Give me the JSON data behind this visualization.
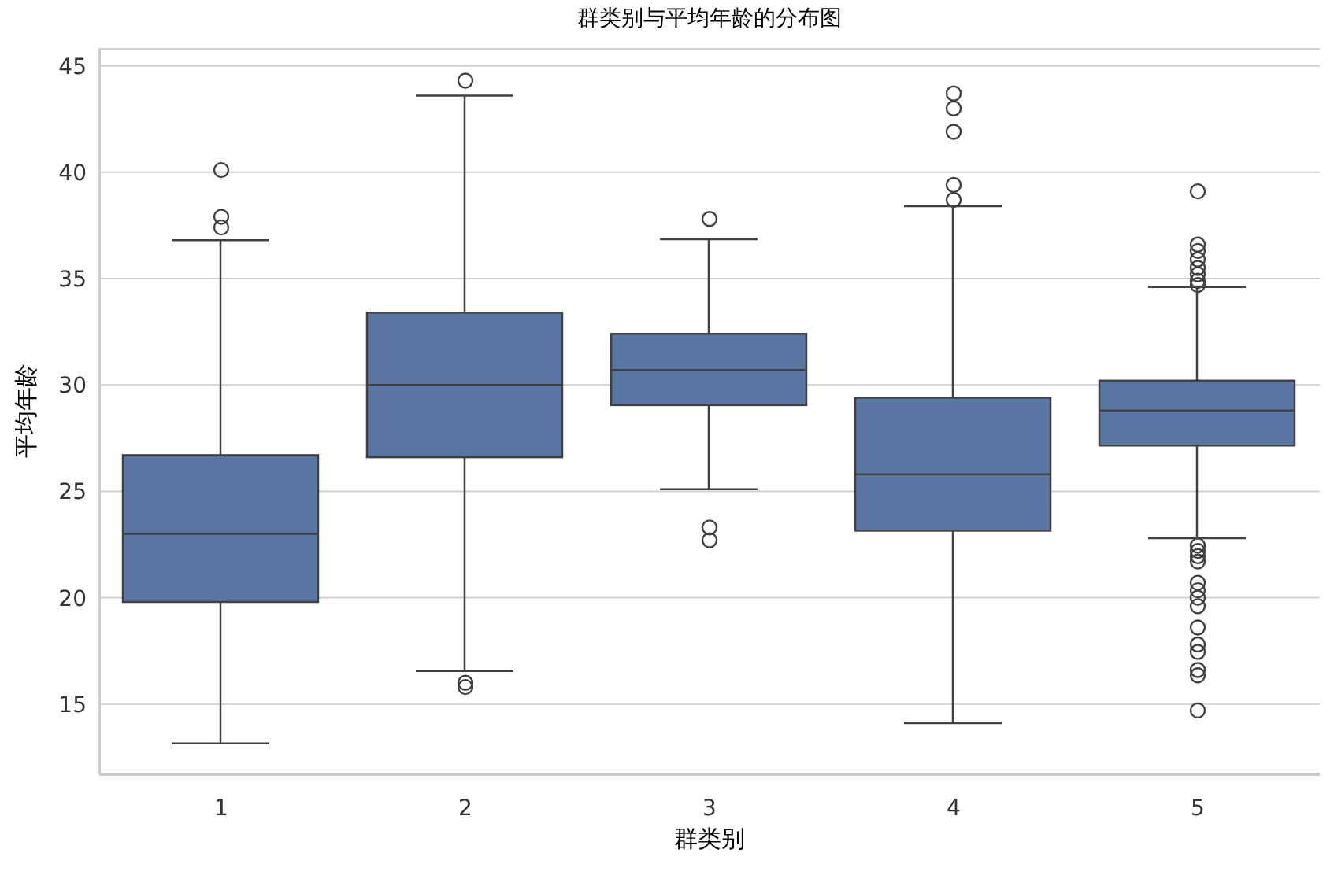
{
  "chart_data": {
    "type": "box",
    "title": "群类别与平均年龄的分布图",
    "xlabel": "群类别",
    "ylabel": "平均年龄",
    "categories": [
      "1",
      "2",
      "3",
      "4",
      "5"
    ],
    "color": "#5975a4",
    "ylim": [
      11.7,
      45.8
    ],
    "yticks": [
      15,
      20,
      25,
      30,
      35,
      40,
      45
    ],
    "grid": "y",
    "boxes": [
      {
        "low": 13.15,
        "q1": 19.8,
        "median": 23.0,
        "q3": 26.7,
        "high": 36.8,
        "outliers": [
          40.1,
          37.9,
          37.4
        ]
      },
      {
        "low": 16.55,
        "q1": 26.6,
        "median": 30.0,
        "q3": 33.4,
        "high": 43.6,
        "outliers": [
          44.3,
          16.0,
          15.8
        ]
      },
      {
        "low": 25.1,
        "q1": 29.05,
        "median": 30.7,
        "q3": 32.4,
        "high": 36.85,
        "outliers": [
          37.8,
          23.3,
          22.7
        ]
      },
      {
        "low": 14.1,
        "q1": 23.15,
        "median": 25.8,
        "q3": 29.4,
        "high": 38.4,
        "outliers": [
          43.7,
          43.0,
          41.9,
          39.4,
          38.7
        ]
      },
      {
        "low": 22.8,
        "q1": 27.15,
        "median": 28.8,
        "q3": 30.2,
        "high": 34.6,
        "outliers": [
          39.1,
          36.6,
          36.3,
          35.9,
          35.5,
          35.2,
          34.9,
          34.7,
          22.45,
          22.2,
          21.95,
          21.7,
          20.7,
          20.35,
          20.0,
          19.6,
          18.6,
          17.8,
          17.45,
          16.6,
          16.35,
          14.7
        ]
      }
    ]
  }
}
